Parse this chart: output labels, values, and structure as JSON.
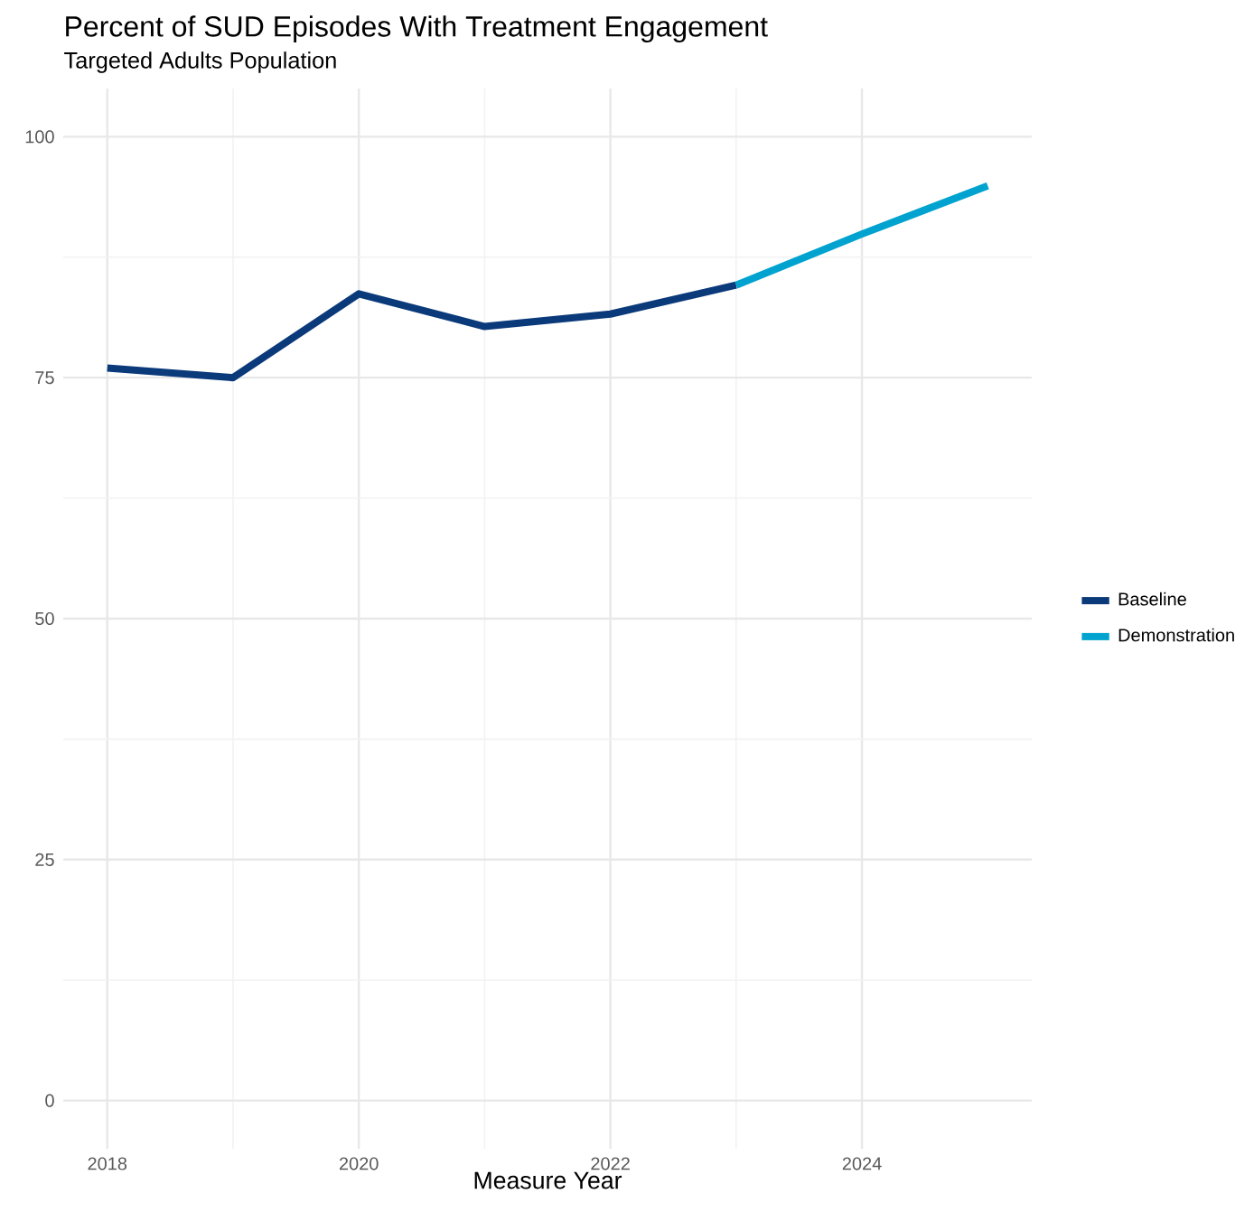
{
  "chart_data": {
    "type": "line",
    "title": "Percent of SUD Episodes With Treatment Engagement",
    "subtitle": "Targeted Adults Population",
    "xlabel": "Measure Year",
    "series": [
      {
        "name": "Baseline",
        "color": "#0b3a7a",
        "x": [
          2018,
          2019,
          2020,
          2021,
          2022,
          2023
        ],
        "values": [
          76.0,
          75.0,
          83.7,
          80.3,
          81.6,
          84.6
        ]
      },
      {
        "name": "Demonstration",
        "color": "#00a3cf",
        "x": [
          2023,
          2024,
          2025
        ],
        "values": [
          84.6,
          89.9,
          94.9
        ]
      }
    ],
    "xlim": [
      2017.65,
      2025.35
    ],
    "xticks": [
      2018,
      2020,
      2022,
      2024
    ],
    "ylim": [
      -5,
      105
    ],
    "yticks": [
      0,
      25,
      50,
      75,
      100
    ],
    "grid": true,
    "legend": "right",
    "line_style": "solid",
    "marker": "none"
  }
}
